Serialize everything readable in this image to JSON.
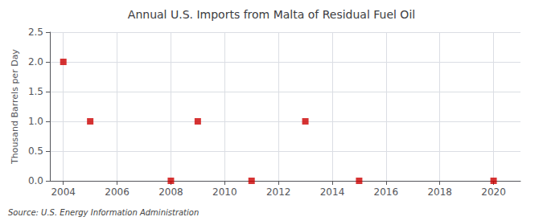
{
  "chart_data": {
    "type": "scatter",
    "title": "Annual U.S. Imports from Malta of Residual Fuel Oil",
    "ylabel": "Thousand Barrels per Day",
    "annotation": "Source: U.S. Energy Information Administration",
    "x": [
      2004,
      2005,
      2008,
      2009,
      2011,
      2013,
      2015,
      2020
    ],
    "values": [
      2.0,
      1.0,
      0.0,
      1.0,
      0.0,
      1.0,
      0.0,
      0.0
    ],
    "color": "#cc0000",
    "marker": "square",
    "xlim": [
      2003.5,
      2021
    ],
    "ylim": [
      0.0,
      2.5
    ],
    "xticks": [
      2004,
      2006,
      2008,
      2010,
      2012,
      2014,
      2016,
      2018,
      2020
    ],
    "yticks": [
      {
        "value": 0,
        "label": "0.0"
      },
      0.5,
      {
        "value": 1,
        "label": "1.0"
      },
      1.5,
      {
        "value": 2,
        "label": "2.0"
      },
      2.5
    ],
    "grid": true
  }
}
